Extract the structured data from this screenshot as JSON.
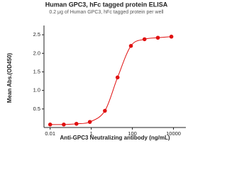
{
  "chart_data": {
    "type": "scatter",
    "title": "Human GPC3, hFc tagged protein ELISA",
    "subtitle": "0.2 μg of Human GPC3, hFc tagged protein per well",
    "xlabel": "Anti-GPC3 Neutralizing antibody (ng/mL)",
    "ylabel": "Mean Abs.(OD450)",
    "xscale": "log",
    "xlim": [
      0.005,
      40000
    ],
    "xticks": [
      0.01,
      1,
      100,
      10000
    ],
    "ylim": [
      0,
      2.75
    ],
    "yticks": [
      {
        "value": 0.5,
        "label": "0.5"
      },
      {
        "value": 1.0,
        "label": "1.0"
      },
      {
        "value": 1.5,
        "label": "1.5"
      },
      {
        "value": 2.0,
        "label": "2.0"
      },
      {
        "value": 2.5,
        "label": "2.5"
      }
    ],
    "color": "#e01010",
    "fit_line": true,
    "x": [
      0.01,
      0.046,
      0.19,
      0.85,
      4.6,
      19,
      85,
      390,
      1740,
      7900
    ],
    "values": [
      0.08,
      0.08,
      0.1,
      0.15,
      0.45,
      1.35,
      2.2,
      2.38,
      2.42,
      2.45
    ]
  }
}
